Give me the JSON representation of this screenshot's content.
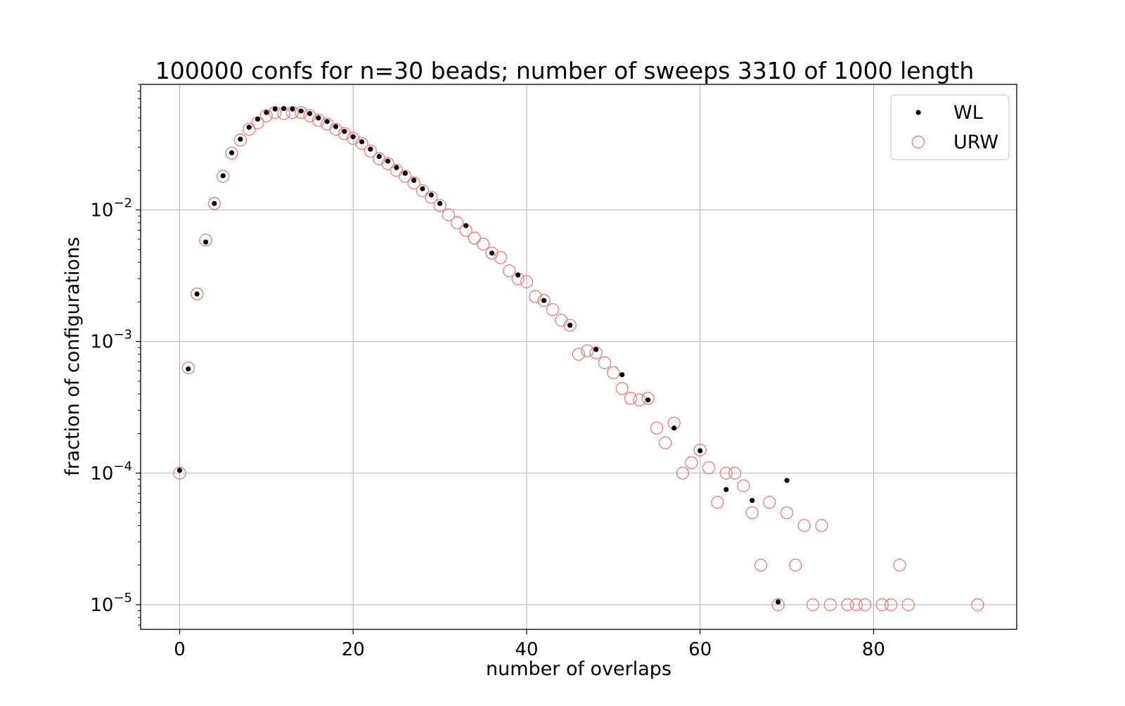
{
  "chart_data": {
    "type": "scatter",
    "title": "100000 confs for n=30 beads; number of sweeps 3310 of 1000 length",
    "xlabel": "number of overlaps",
    "ylabel": "fraction of configurations",
    "xlim": [
      -4.5,
      96.5
    ],
    "ylim": [
      6.5e-06,
      0.09
    ],
    "yscale": "log",
    "grid": true,
    "legend_position": "top-right",
    "x_ticks": [
      {
        "value": 0,
        "label": "0"
      },
      {
        "value": 20,
        "label": "20"
      },
      {
        "value": 40,
        "label": "40"
      },
      {
        "value": 60,
        "label": "60"
      },
      {
        "value": 80,
        "label": "80"
      }
    ],
    "y_ticks": [
      {
        "value": 0.01,
        "base": "10",
        "exp": "−2"
      },
      {
        "value": 0.001,
        "base": "10",
        "exp": "−3"
      },
      {
        "value": 0.0001,
        "base": "10",
        "exp": "−4"
      },
      {
        "value": 1e-05,
        "base": "10",
        "exp": "−5"
      }
    ],
    "series": [
      {
        "name": "WL",
        "marker": "dot",
        "color": "#000000",
        "points": [
          [
            0,
            0.000105
          ],
          [
            1,
            0.00062
          ],
          [
            2,
            0.0023
          ],
          [
            3,
            0.0057
          ],
          [
            4,
            0.0112
          ],
          [
            5,
            0.0182
          ],
          [
            6,
            0.0272
          ],
          [
            7,
            0.0345
          ],
          [
            8,
            0.0425
          ],
          [
            9,
            0.049
          ],
          [
            10,
            0.055
          ],
          [
            11,
            0.0585
          ],
          [
            12,
            0.059
          ],
          [
            13,
            0.0585
          ],
          [
            14,
            0.0565
          ],
          [
            15,
            0.054
          ],
          [
            16,
            0.05
          ],
          [
            17,
            0.047
          ],
          [
            18,
            0.043
          ],
          [
            19,
            0.0395
          ],
          [
            20,
            0.036
          ],
          [
            21,
            0.033
          ],
          [
            22,
            0.029
          ],
          [
            23,
            0.0255
          ],
          [
            24,
            0.0235
          ],
          [
            25,
            0.021
          ],
          [
            26,
            0.019
          ],
          [
            27,
            0.0168
          ],
          [
            28,
            0.0145
          ],
          [
            29,
            0.013
          ],
          [
            30,
            0.0112
          ],
          [
            33,
            0.0076
          ],
          [
            36,
            0.0047
          ],
          [
            39,
            0.0032
          ],
          [
            42,
            0.00205
          ],
          [
            45,
            0.00133
          ],
          [
            48,
            0.00087
          ],
          [
            51,
            0.00056
          ],
          [
            54,
            0.00036
          ],
          [
            57,
            0.00022
          ],
          [
            60,
            0.000148
          ],
          [
            63,
            7.5e-05
          ],
          [
            66,
            6.2e-05
          ],
          [
            69,
            1.05e-05
          ],
          [
            70,
            8.8e-05
          ]
        ]
      },
      {
        "name": "URW",
        "marker": "open-circle",
        "color": "#f08080",
        "points": [
          [
            0,
            0.0001
          ],
          [
            1,
            0.00063
          ],
          [
            2,
            0.0023
          ],
          [
            3,
            0.0059
          ],
          [
            4,
            0.0112
          ],
          [
            5,
            0.018
          ],
          [
            6,
            0.027
          ],
          [
            7,
            0.034
          ],
          [
            8,
            0.041
          ],
          [
            9,
            0.046
          ],
          [
            10,
            0.052
          ],
          [
            11,
            0.055
          ],
          [
            12,
            0.054
          ],
          [
            13,
            0.055
          ],
          [
            14,
            0.055
          ],
          [
            15,
            0.052
          ],
          [
            16,
            0.048
          ],
          [
            17,
            0.045
          ],
          [
            18,
            0.041
          ],
          [
            19,
            0.038
          ],
          [
            20,
            0.035
          ],
          [
            21,
            0.032
          ],
          [
            22,
            0.028
          ],
          [
            23,
            0.0245
          ],
          [
            24,
            0.0225
          ],
          [
            25,
            0.02
          ],
          [
            26,
            0.018
          ],
          [
            27,
            0.016
          ],
          [
            28,
            0.014
          ],
          [
            29,
            0.0125
          ],
          [
            30,
            0.0108
          ],
          [
            31,
            0.0092
          ],
          [
            32,
            0.008
          ],
          [
            33,
            0.007
          ],
          [
            34,
            0.0061
          ],
          [
            35,
            0.0055
          ],
          [
            36,
            0.0047
          ],
          [
            37,
            0.00435
          ],
          [
            38,
            0.00345
          ],
          [
            39,
            0.003
          ],
          [
            40,
            0.00285
          ],
          [
            41,
            0.0022
          ],
          [
            42,
            0.00205
          ],
          [
            43,
            0.00175
          ],
          [
            44,
            0.00145
          ],
          [
            45,
            0.00133
          ],
          [
            46,
            0.0008
          ],
          [
            47,
            0.00085
          ],
          [
            48,
            0.00082
          ],
          [
            49,
            0.00069
          ],
          [
            50,
            0.00058
          ],
          [
            51,
            0.00044
          ],
          [
            52,
            0.00037
          ],
          [
            53,
            0.00036
          ],
          [
            54,
            0.00037
          ],
          [
            55,
            0.00022
          ],
          [
            56,
            0.00017
          ],
          [
            57,
            0.00024
          ],
          [
            58,
            0.0001
          ],
          [
            59,
            0.00012
          ],
          [
            60,
            0.00015
          ],
          [
            61,
            0.00011
          ],
          [
            62,
            6e-05
          ],
          [
            63,
            0.0001
          ],
          [
            64,
            0.0001
          ],
          [
            65,
            8e-05
          ],
          [
            66,
            5e-05
          ],
          [
            67,
            2e-05
          ],
          [
            68,
            6e-05
          ],
          [
            69,
            1e-05
          ],
          [
            70,
            5e-05
          ],
          [
            71,
            2e-05
          ],
          [
            72,
            4e-05
          ],
          [
            73,
            1e-05
          ],
          [
            74,
            4e-05
          ],
          [
            75,
            1e-05
          ],
          [
            77,
            1e-05
          ],
          [
            78,
            1e-05
          ],
          [
            79,
            1e-05
          ],
          [
            81,
            1e-05
          ],
          [
            82,
            1e-05
          ],
          [
            83,
            2e-05
          ],
          [
            84,
            1e-05
          ],
          [
            92,
            1e-05
          ]
        ]
      }
    ]
  }
}
